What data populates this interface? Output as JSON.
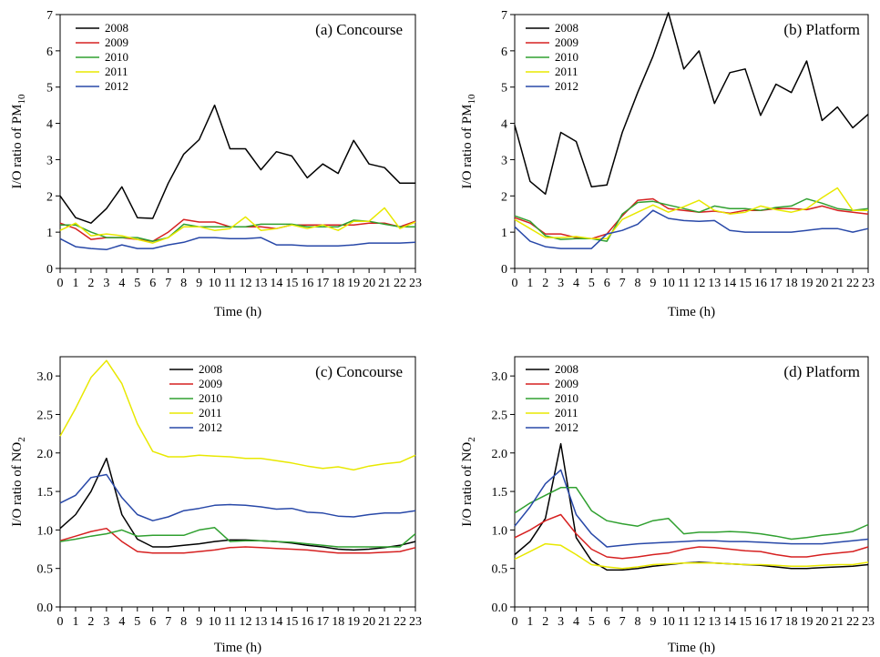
{
  "figure": {
    "xlabel": "Time (h)"
  },
  "chart_data": [
    {
      "type": "line",
      "panel_label": "(a) Concourse",
      "ylabel_main": "I/O ratio of PM",
      "ylabel_sub": "10",
      "xlabel": "Time (h)",
      "ylim": [
        0,
        7
      ],
      "yticks": [
        "0",
        "1",
        "2",
        "3",
        "4",
        "5",
        "6",
        "7"
      ],
      "xticks": [
        "0",
        "1",
        "2",
        "3",
        "4",
        "5",
        "6",
        "7",
        "8",
        "9",
        "10",
        "11",
        "12",
        "13",
        "14",
        "15",
        "16",
        "17",
        "18",
        "19",
        "20",
        "21",
        "22",
        "23"
      ],
      "legend_position": "top-left",
      "series": [
        {
          "name": "2008",
          "color": "#000000",
          "values": [
            2.0,
            1.4,
            1.25,
            1.65,
            2.25,
            1.4,
            1.38,
            2.35,
            3.15,
            3.55,
            4.5,
            3.3,
            3.3,
            2.72,
            3.22,
            3.1,
            2.5,
            2.88,
            2.62,
            3.53,
            2.88,
            2.78,
            2.35,
            2.35
          ]
        },
        {
          "name": "2009",
          "color": "#d62020",
          "values": [
            1.25,
            1.1,
            0.8,
            0.85,
            0.85,
            0.8,
            0.75,
            1.0,
            1.35,
            1.28,
            1.28,
            1.15,
            1.15,
            1.15,
            1.1,
            1.2,
            1.2,
            1.2,
            1.2,
            1.2,
            1.25,
            1.25,
            1.15,
            1.3
          ]
        },
        {
          "name": "2010",
          "color": "#30a030",
          "values": [
            1.2,
            1.2,
            1.0,
            0.85,
            0.85,
            0.85,
            0.75,
            0.85,
            1.22,
            1.15,
            1.15,
            1.15,
            1.15,
            1.22,
            1.22,
            1.22,
            1.15,
            1.15,
            1.15,
            1.33,
            1.3,
            1.22,
            1.15,
            1.15
          ]
        },
        {
          "name": "2011",
          "color": "#e8e800",
          "values": [
            1.05,
            1.25,
            0.9,
            0.95,
            0.9,
            0.8,
            0.7,
            0.85,
            1.15,
            1.15,
            1.05,
            1.1,
            1.42,
            1.05,
            1.1,
            1.2,
            1.1,
            1.2,
            1.05,
            1.3,
            1.3,
            1.67,
            1.1,
            1.28
          ]
        },
        {
          "name": "2012",
          "color": "#2848a8",
          "values": [
            0.82,
            0.6,
            0.55,
            0.52,
            0.65,
            0.55,
            0.55,
            0.65,
            0.72,
            0.85,
            0.85,
            0.82,
            0.82,
            0.85,
            0.65,
            0.65,
            0.62,
            0.62,
            0.62,
            0.65,
            0.7,
            0.7,
            0.7,
            0.72
          ]
        }
      ]
    },
    {
      "type": "line",
      "panel_label": "(b) Platform",
      "ylabel_main": "I/O ratio of PM",
      "ylabel_sub": "10",
      "xlabel": "Time (h)",
      "ylim": [
        0,
        7
      ],
      "yticks": [
        "0",
        "1",
        "2",
        "3",
        "4",
        "5",
        "6",
        "7"
      ],
      "xticks": [
        "0",
        "1",
        "2",
        "3",
        "4",
        "5",
        "6",
        "7",
        "8",
        "9",
        "10",
        "11",
        "12",
        "13",
        "14",
        "15",
        "16",
        "17",
        "18",
        "19",
        "20",
        "21",
        "22",
        "23"
      ],
      "legend_position": "top-left",
      "series": [
        {
          "name": "2008",
          "color": "#000000",
          "values": [
            3.95,
            2.4,
            2.05,
            3.75,
            3.5,
            2.25,
            2.3,
            3.75,
            4.85,
            5.85,
            7.05,
            5.5,
            6.0,
            4.55,
            5.4,
            5.5,
            4.22,
            5.08,
            4.85,
            5.72,
            4.08,
            4.45,
            3.88,
            4.25
          ]
        },
        {
          "name": "2009",
          "color": "#d62020",
          "values": [
            1.4,
            1.25,
            0.95,
            0.95,
            0.85,
            0.82,
            0.95,
            1.45,
            1.88,
            1.92,
            1.65,
            1.6,
            1.55,
            1.58,
            1.52,
            1.6,
            1.6,
            1.65,
            1.65,
            1.62,
            1.72,
            1.6,
            1.55,
            1.5
          ]
        },
        {
          "name": "2010",
          "color": "#30a030",
          "values": [
            1.45,
            1.3,
            0.9,
            0.8,
            0.82,
            0.82,
            0.75,
            1.5,
            1.82,
            1.85,
            1.75,
            1.65,
            1.55,
            1.72,
            1.65,
            1.65,
            1.6,
            1.68,
            1.72,
            1.92,
            1.8,
            1.65,
            1.6,
            1.65
          ]
        },
        {
          "name": "2011",
          "color": "#e8e800",
          "values": [
            1.35,
            1.1,
            0.85,
            0.85,
            0.88,
            0.82,
            0.82,
            1.35,
            1.55,
            1.75,
            1.55,
            1.7,
            1.88,
            1.6,
            1.5,
            1.55,
            1.72,
            1.62,
            1.55,
            1.65,
            1.95,
            2.22,
            1.6,
            1.6
          ]
        },
        {
          "name": "2012",
          "color": "#2848a8",
          "values": [
            1.15,
            0.75,
            0.6,
            0.55,
            0.55,
            0.55,
            0.95,
            1.05,
            1.22,
            1.6,
            1.38,
            1.32,
            1.3,
            1.32,
            1.05,
            1.0,
            1.0,
            1.0,
            1.0,
            1.05,
            1.1,
            1.1,
            1.0,
            1.1
          ]
        }
      ]
    },
    {
      "type": "line",
      "panel_label": "(c) Concourse",
      "ylabel_main": "I/O ratio of NO",
      "ylabel_sub": "2",
      "xlabel": "Time (h)",
      "ylim": [
        0,
        3.25
      ],
      "yticks": [
        "0.0",
        "0.5",
        "1.0",
        "1.5",
        "2.0",
        "2.5",
        "3.0"
      ],
      "xticks": [
        "0",
        "1",
        "2",
        "3",
        "4",
        "5",
        "6",
        "7",
        "8",
        "9",
        "10",
        "11",
        "12",
        "13",
        "14",
        "15",
        "16",
        "17",
        "18",
        "19",
        "20",
        "21",
        "22",
        "23"
      ],
      "legend_position": "top-center",
      "series": [
        {
          "name": "2008",
          "color": "#000000",
          "values": [
            1.02,
            1.2,
            1.5,
            1.93,
            1.2,
            0.88,
            0.78,
            0.78,
            0.8,
            0.82,
            0.85,
            0.87,
            0.87,
            0.86,
            0.85,
            0.83,
            0.8,
            0.78,
            0.75,
            0.74,
            0.75,
            0.77,
            0.8,
            0.85
          ]
        },
        {
          "name": "2009",
          "color": "#d62020",
          "values": [
            0.86,
            0.92,
            0.98,
            1.02,
            0.85,
            0.72,
            0.7,
            0.7,
            0.7,
            0.72,
            0.74,
            0.77,
            0.78,
            0.77,
            0.76,
            0.75,
            0.74,
            0.72,
            0.7,
            0.7,
            0.7,
            0.71,
            0.72,
            0.77
          ]
        },
        {
          "name": "2010",
          "color": "#30a030",
          "values": [
            0.85,
            0.88,
            0.92,
            0.95,
            1.0,
            0.92,
            0.93,
            0.93,
            0.93,
            1.0,
            1.03,
            0.85,
            0.86,
            0.86,
            0.85,
            0.84,
            0.82,
            0.8,
            0.78,
            0.78,
            0.78,
            0.78,
            0.78,
            0.95
          ]
        },
        {
          "name": "2011",
          "color": "#e8e800",
          "values": [
            2.22,
            2.58,
            2.98,
            3.2,
            2.9,
            2.38,
            2.02,
            1.95,
            1.95,
            1.97,
            1.96,
            1.95,
            1.93,
            1.93,
            1.9,
            1.87,
            1.83,
            1.8,
            1.82,
            1.78,
            1.83,
            1.86,
            1.88,
            1.97
          ]
        },
        {
          "name": "2012",
          "color": "#2848a8",
          "values": [
            1.35,
            1.45,
            1.68,
            1.72,
            1.42,
            1.2,
            1.12,
            1.17,
            1.25,
            1.28,
            1.32,
            1.33,
            1.32,
            1.3,
            1.27,
            1.28,
            1.23,
            1.22,
            1.18,
            1.17,
            1.2,
            1.22,
            1.22,
            1.25
          ]
        }
      ]
    },
    {
      "type": "line",
      "panel_label": "(d) Platform",
      "ylabel_main": "I/O ratio of NO",
      "ylabel_sub": "2",
      "xlabel": "Time (h)",
      "ylim": [
        0,
        3.25
      ],
      "yticks": [
        "0.0",
        "0.5",
        "1.0",
        "1.5",
        "2.0",
        "2.5",
        "3.0"
      ],
      "xticks": [
        "0",
        "1",
        "2",
        "3",
        "4",
        "5",
        "6",
        "7",
        "8",
        "9",
        "10",
        "11",
        "12",
        "13",
        "14",
        "15",
        "16",
        "17",
        "18",
        "19",
        "20",
        "21",
        "22",
        "23"
      ],
      "legend_position": "top-center",
      "series": [
        {
          "name": "2008",
          "color": "#000000",
          "values": [
            0.68,
            0.85,
            1.15,
            2.12,
            0.9,
            0.6,
            0.48,
            0.48,
            0.5,
            0.53,
            0.55,
            0.57,
            0.58,
            0.57,
            0.56,
            0.55,
            0.54,
            0.52,
            0.5,
            0.5,
            0.51,
            0.52,
            0.53,
            0.55
          ]
        },
        {
          "name": "2009",
          "color": "#d62020",
          "values": [
            0.9,
            1.0,
            1.12,
            1.2,
            0.95,
            0.75,
            0.65,
            0.63,
            0.65,
            0.68,
            0.7,
            0.75,
            0.78,
            0.77,
            0.75,
            0.73,
            0.72,
            0.68,
            0.65,
            0.65,
            0.68,
            0.7,
            0.72,
            0.78
          ]
        },
        {
          "name": "2010",
          "color": "#30a030",
          "values": [
            1.22,
            1.35,
            1.45,
            1.55,
            1.55,
            1.25,
            1.12,
            1.08,
            1.05,
            1.12,
            1.15,
            0.95,
            0.97,
            0.97,
            0.98,
            0.97,
            0.95,
            0.92,
            0.88,
            0.9,
            0.93,
            0.95,
            0.98,
            1.07
          ]
        },
        {
          "name": "2011",
          "color": "#e8e800",
          "values": [
            0.62,
            0.72,
            0.82,
            0.8,
            0.68,
            0.55,
            0.52,
            0.5,
            0.52,
            0.55,
            0.56,
            0.57,
            0.57,
            0.57,
            0.56,
            0.55,
            0.55,
            0.54,
            0.53,
            0.53,
            0.54,
            0.55,
            0.55,
            0.58
          ]
        },
        {
          "name": "2012",
          "color": "#2848a8",
          "values": [
            1.05,
            1.3,
            1.6,
            1.78,
            1.2,
            0.95,
            0.78,
            0.8,
            0.82,
            0.83,
            0.84,
            0.85,
            0.86,
            0.86,
            0.85,
            0.85,
            0.84,
            0.83,
            0.82,
            0.82,
            0.82,
            0.84,
            0.86,
            0.88
          ]
        }
      ]
    }
  ]
}
